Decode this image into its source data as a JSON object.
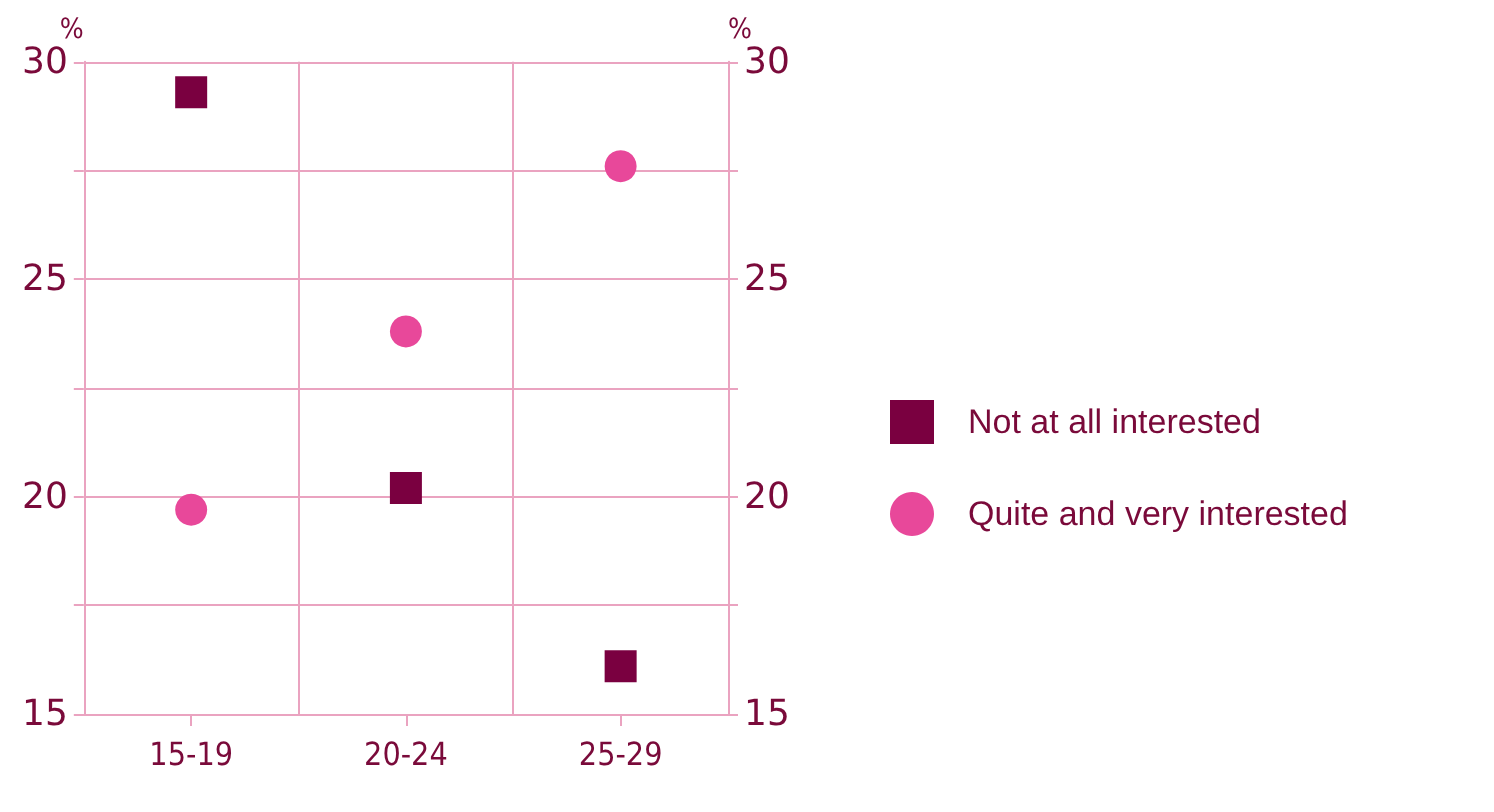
{
  "chart_data": {
    "type": "scatter",
    "ylabel": "%",
    "y2label": "%",
    "categories": [
      "15-19",
      "20-24",
      "25-29"
    ],
    "series": [
      {
        "name": "Not at all interested",
        "color": "#7a0040",
        "marker": "square",
        "values": [
          29.3,
          20.2,
          16.1
        ]
      },
      {
        "name": "Quite and very interested",
        "color": "#e8489a",
        "marker": "circle",
        "values": [
          19.7,
          23.8,
          27.6
        ]
      }
    ],
    "ylim": [
      15,
      30
    ],
    "yticks": [
      15,
      {
        "value": 17.5,
        "label": null
      },
      20,
      {
        "value": 22.5,
        "label": null
      },
      25,
      {
        "value": 27.5,
        "label": null
      },
      30
    ],
    "y2lim": [
      15,
      30
    ],
    "y2ticks": [
      15,
      {
        "value": 17.5,
        "label": null
      },
      20,
      {
        "value": 22.5,
        "label": null
      },
      25,
      {
        "value": 27.5,
        "label": null
      },
      30
    ],
    "grid": true,
    "legend": "right"
  }
}
